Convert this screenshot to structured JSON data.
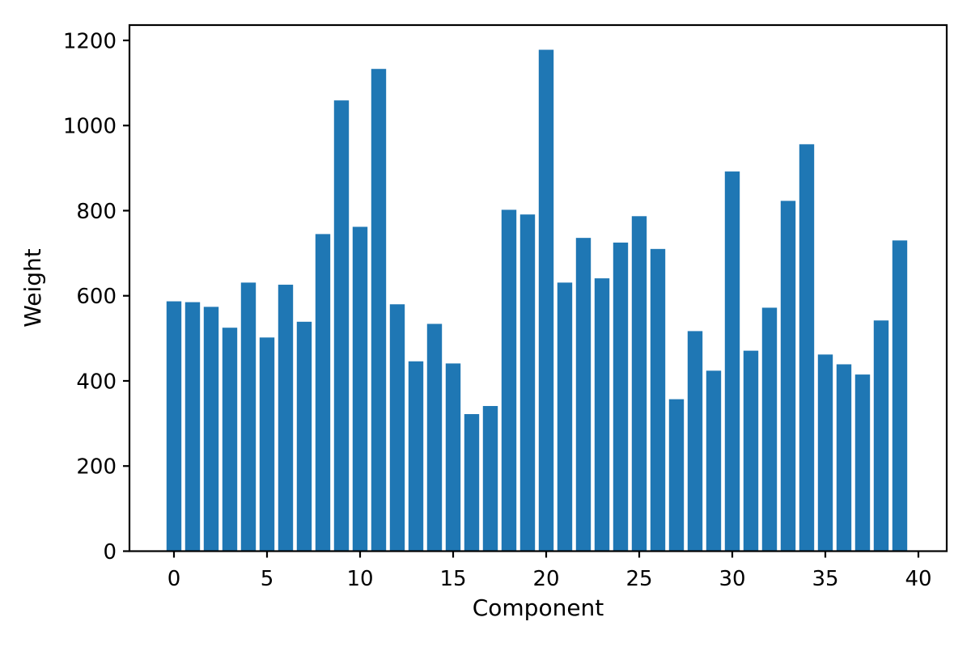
{
  "chart_data": {
    "type": "bar",
    "title": "",
    "xlabel": "Component",
    "ylabel": "Weight",
    "categories": [
      0,
      1,
      2,
      3,
      4,
      5,
      6,
      7,
      8,
      9,
      10,
      11,
      12,
      13,
      14,
      15,
      16,
      17,
      18,
      19,
      20,
      21,
      22,
      23,
      24,
      25,
      26,
      27,
      28,
      29,
      30,
      31,
      32,
      33,
      34,
      35,
      36,
      37,
      38,
      39
    ],
    "values": [
      587,
      585,
      574,
      525,
      631,
      502,
      626,
      539,
      745,
      1059,
      762,
      1133,
      580,
      446,
      534,
      441,
      322,
      341,
      802,
      791,
      1178,
      631,
      736,
      641,
      725,
      787,
      710,
      357,
      517,
      424,
      892,
      471,
      572,
      823,
      956,
      462,
      439,
      415,
      542,
      730
    ],
    "xticks": [
      0,
      5,
      10,
      15,
      20,
      25,
      30,
      35,
      40
    ],
    "yticks": [
      0,
      200,
      400,
      600,
      800,
      1000,
      1200
    ],
    "xlim": [
      -2.391,
      41.522
    ],
    "ylim": [
      0,
      1236
    ],
    "grid": false,
    "legend_position": "none",
    "bar_color": "#1f77b4",
    "frame_color": "#000000",
    "background_color": "#ffffff"
  }
}
